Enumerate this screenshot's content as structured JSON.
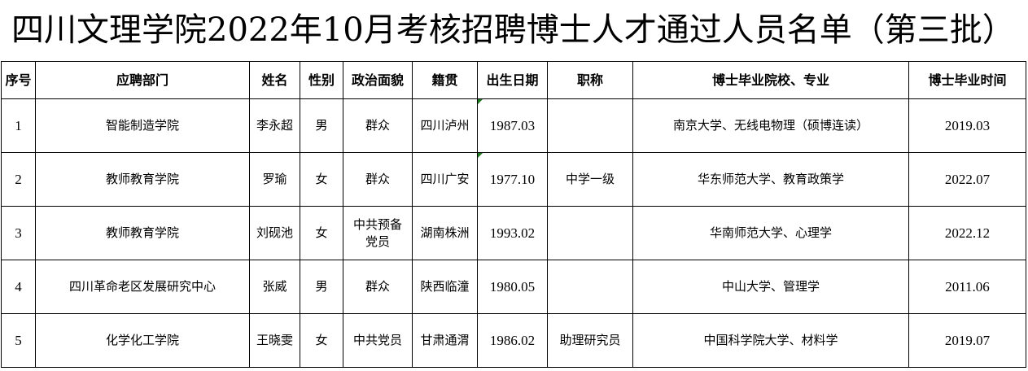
{
  "title": "四川文理学院2022年10月考核招聘博士人才通过人员名单（第三批）",
  "headers": [
    "序号",
    "应聘部门",
    "姓名",
    "性别",
    "政治面貌",
    "籍贯",
    "出生日期",
    "职称",
    "博士毕业院校、专业",
    "博士毕业时间"
  ],
  "rows": [
    [
      "1",
      "智能制造学院",
      "李永超",
      "男",
      "群众",
      "四川泸州",
      "1987.03",
      "",
      "南京大学、无线电物理（硕博连读）",
      "2019.03"
    ],
    [
      "2",
      "教师教育学院",
      "罗瑜",
      "女",
      "群众",
      "四川广安",
      "1977.10",
      "中学一级",
      "华东师范大学、教育政策学",
      "2022.07"
    ],
    [
      "3",
      "教师教育学院",
      "刘砚池",
      "女",
      "中共预备党员",
      "湖南株洲",
      "1993.02",
      "",
      "华南师范大学、心理学",
      "2022.12"
    ],
    [
      "4",
      "四川革命老区发展研究中心",
      "张威",
      "男",
      "群众",
      "陕西临潼",
      "1980.05",
      "",
      "中山大学、管理学",
      "2011.06"
    ],
    [
      "5",
      "化学化工学院",
      "王晓雯",
      "女",
      "中共党员",
      "甘肃通渭",
      "1986.02",
      "助理研究员",
      "中国科学院大学、材料学",
      "2019.07"
    ]
  ]
}
